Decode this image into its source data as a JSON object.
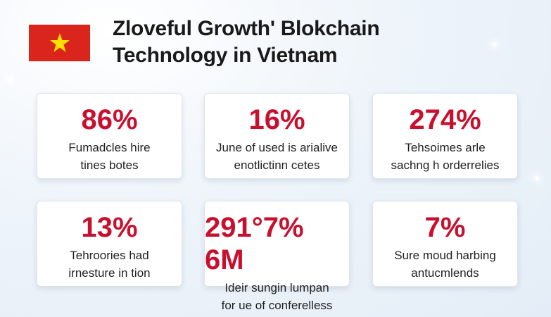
{
  "title": {
    "line1": "Zloveful Growth' Blokchain",
    "line2": "Technology in Vietnam"
  },
  "colors": {
    "flag_red": "#da251d",
    "star_yellow": "#ffde00",
    "stat_red": "#c8102e",
    "text_dark": "#1a1a1a"
  },
  "cards": [
    {
      "stat": "86%",
      "desc_line1": "Fumadcles hire",
      "desc_line2": "tines botes"
    },
    {
      "stat": "16%",
      "desc_line1": "June of used is arialive",
      "desc_line2": "enotlictinn cetes"
    },
    {
      "stat": "274%",
      "desc_line1": "Tehsoimes arle",
      "desc_line2": "sachng h orderrelies"
    },
    {
      "stat": "13%",
      "desc_line1": "Tehroories had",
      "desc_line2": "irnesture in tion"
    },
    {
      "stat": "291°7% 6M",
      "desc_line1": "Ideir sungin lumpan",
      "desc_line2": "for ue of conferelless"
    },
    {
      "stat": "7%",
      "desc_line1": "Sure moud harbing",
      "desc_line2": "antucmlends"
    }
  ]
}
